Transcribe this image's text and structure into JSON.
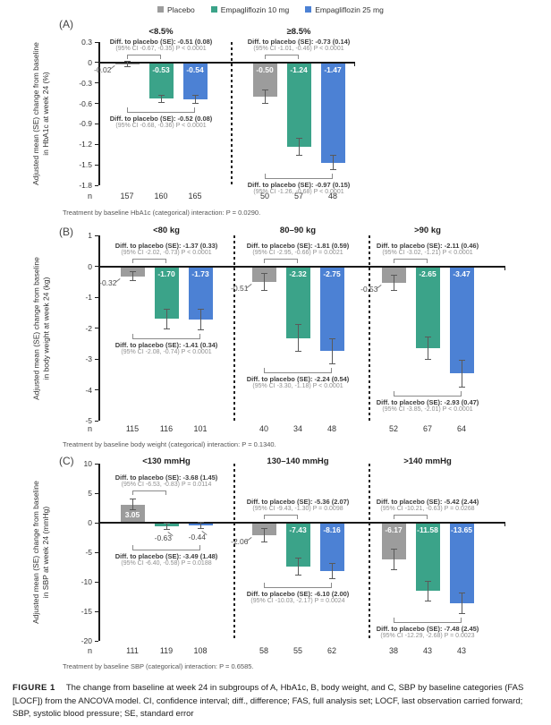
{
  "legend": {
    "items": [
      {
        "label": "Placebo",
        "color": "#9C9C9C"
      },
      {
        "label": "Empagliflozin 10 mg",
        "color": "#3BA389"
      },
      {
        "label": "Empagliflozin 25 mg",
        "color": "#4C81D4"
      }
    ]
  },
  "chart_data": [
    {
      "type": "bar",
      "panel_label": "(A)",
      "ylabel": [
        "Adjusted mean (SE) change from baseline",
        "in HbA1c at week 24 (%)"
      ],
      "ylim": [
        0.3,
        -1.8
      ],
      "yticks": [
        "0.3",
        "0",
        "-0.3",
        "-0.6",
        "-0.9",
        "-1.2",
        "-1.5",
        "-1.8"
      ],
      "series_names": [
        "Placebo",
        "Empagliflozin 10 mg",
        "Empagliflozin 25 mg"
      ],
      "n_label": "n",
      "groups": [
        {
          "title": "<8.5%",
          "values": [
            -0.02,
            -0.53,
            -0.54
          ],
          "labels": [
            "-0.02",
            "-0.53",
            "-0.54"
          ],
          "se": [
            0.05,
            0.06,
            0.06
          ],
          "n": [
            "157",
            "160",
            "165"
          ],
          "diff_10mg": {
            "line1": "Diff. to placebo (SE): -0.51 (0.08)",
            "line2": "(95% CI -0.67, -0.35) P < 0.0001"
          },
          "diff_25mg": {
            "line1": "Diff. to placebo (SE): -0.52 (0.08)",
            "line2": "(95% CI -0.68, -0.36) P < 0.0001"
          }
        },
        {
          "title": "≥8.5%",
          "values": [
            -0.5,
            -1.24,
            -1.47
          ],
          "labels": [
            "-0.50",
            "-1.24",
            "-1.47"
          ],
          "se": [
            0.1,
            0.13,
            0.11
          ],
          "n": [
            "50",
            "57",
            "48"
          ],
          "diff_10mg": {
            "line1": "Diff. to placebo (SE): -0.73 (0.14)",
            "line2": "(95% CI -1.01, -0.46) P < 0.0001"
          },
          "diff_25mg": {
            "line1": "Diff. to placebo (SE): -0.97 (0.15)",
            "line2": "(95% CI -1.26, -0.68) P < 0.0001"
          }
        }
      ],
      "footnote": "Treatment by baseline HbA1c (categorical) interaction: P = 0.0290."
    },
    {
      "type": "bar",
      "panel_label": "(B)",
      "ylabel": [
        "Adjusted mean (SE) change from baseline",
        "in body weight at week 24 (kg)"
      ],
      "ylim": [
        1,
        -5
      ],
      "yticks": [
        "1",
        "0",
        "-1",
        "-2",
        "-3",
        "-4",
        "-5"
      ],
      "series_names": [
        "Placebo",
        "Empagliflozin 10 mg",
        "Empagliflozin 25 mg"
      ],
      "n_label": "n",
      "groups": [
        {
          "title": "<80 kg",
          "values": [
            -0.32,
            -1.7,
            -1.73
          ],
          "labels": [
            "-0.32",
            "-1.70",
            "-1.73"
          ],
          "se": [
            0.16,
            0.33,
            0.35
          ],
          "n": [
            "115",
            "116",
            "101"
          ],
          "diff_10mg": {
            "line1": "Diff. to placebo (SE): -1.37 (0.33)",
            "line2": "(95% CI -2.02, -0.73) P < 0.0001"
          },
          "diff_25mg": {
            "line1": "Diff. to placebo (SE): -1.41 (0.34)",
            "line2": "(95% CI -2.08, -0.74) P < 0.0001"
          }
        },
        {
          "title": "80–90 kg",
          "values": [
            -0.51,
            -2.32,
            -2.75
          ],
          "labels": [
            "-0.51",
            "-2.32",
            "-2.75"
          ],
          "se": [
            0.28,
            0.45,
            0.42
          ],
          "n": [
            "40",
            "34",
            "48"
          ],
          "diff_10mg": {
            "line1": "Diff. to placebo (SE): -1.81 (0.59)",
            "line2": "(95% CI -2.95, -0.66) P = 0.0021"
          },
          "diff_25mg": {
            "line1": "Diff. to placebo (SE): -2.24 (0.54)",
            "line2": "(95% CI -3.30, -1.18) P < 0.0001"
          }
        },
        {
          "title": ">90 kg",
          "values": [
            -0.53,
            -2.65,
            -3.47
          ],
          "labels": [
            "-0.53",
            "-2.65",
            "-3.47"
          ],
          "se": [
            0.26,
            0.37,
            0.45
          ],
          "n": [
            "52",
            "67",
            "64"
          ],
          "diff_10mg": {
            "line1": "Diff. to placebo (SE): -2.11 (0.46)",
            "line2": "(95% CI -3.02, -1.21) P < 0.0001"
          },
          "diff_25mg": {
            "line1": "Diff. to placebo (SE): -2.93 (0.47)",
            "line2": "(95% CI -3.85, -2.01) P < 0.0001"
          }
        }
      ],
      "footnote": "Treatment by baseline body weight (categorical) interaction: P = 0.1340."
    },
    {
      "type": "bar",
      "panel_label": "(C)",
      "ylabel": [
        "Adjusted mean (SE) change from baseline",
        "in SBP at week 24 (mmHg)"
      ],
      "ylim": [
        10,
        -20
      ],
      "yticks": [
        "10",
        "5",
        "0",
        "-5",
        "-10",
        "-15",
        "-20"
      ],
      "series_names": [
        "Placebo",
        "Empagliflozin 10 mg",
        "Empagliflozin 25 mg"
      ],
      "n_label": "n",
      "groups": [
        {
          "title": "<130 mmHg",
          "values": [
            3.05,
            -0.63,
            -0.44
          ],
          "labels": [
            "3.05",
            "-0.63",
            "-0.44"
          ],
          "se": [
            1.0,
            0.65,
            0.6
          ],
          "n": [
            "111",
            "119",
            "108"
          ],
          "diff_10mg": {
            "line1": "Diff. to placebo (SE): -3.68 (1.45)",
            "line2": "(95% CI -6.53, -0.83) P = 0.0114"
          },
          "diff_25mg": {
            "line1": "Diff. to placebo (SE): -3.49 (1.48)",
            "line2": "(95% CI -6.40, -0.58) P = 0.0188"
          }
        },
        {
          "title": "130–140 mmHg",
          "values": [
            -2.06,
            -7.43,
            -8.16
          ],
          "labels": [
            "-2.06",
            "-7.43",
            "-8.16"
          ],
          "se": [
            1.2,
            1.5,
            1.4
          ],
          "n": [
            "58",
            "55",
            "62"
          ],
          "diff_10mg": {
            "line1": "Diff. to placebo (SE): -5.36 (2.07)",
            "line2": "(95% CI -9.43, -1.30) P = 0.0098"
          },
          "diff_25mg": {
            "line1": "Diff. to placebo (SE): -6.10 (2.00)",
            "line2": "(95% CI -10.03, -2.17) P = 0.0024"
          }
        },
        {
          "title": ">140 mmHg",
          "values": [
            -6.17,
            -11.58,
            -13.65
          ],
          "labels": [
            "-6.17",
            "-11.58",
            "-13.65"
          ],
          "se": [
            1.8,
            1.7,
            1.8
          ],
          "n": [
            "38",
            "43",
            "43"
          ],
          "diff_10mg": {
            "line1": "Diff. to placebo (SE): -5.42 (2.44)",
            "line2": "(95% CI -10.21, -0.63) P = 0.0268"
          },
          "diff_25mg": {
            "line1": "Diff. to placebo (SE): -7.48 (2.45)",
            "line2": "(95% CI -12.29, -2.68) P = 0.0023"
          }
        }
      ],
      "footnote": "Treatment by baseline SBP (categorical) interaction: P = 0.6585."
    }
  ],
  "caption": {
    "tag": "FIGURE 1",
    "text": "The change from baseline at week 24 in subgroups of A, HbA1c, B, body weight, and C, SBP by baseline categories (FAS [LOCF]) from the ANCOVA model. CI, confidence interval; diff., difference; FAS, full analysis set; LOCF, last observation carried forward; SBP, systolic blood pressure; SE, standard error"
  }
}
